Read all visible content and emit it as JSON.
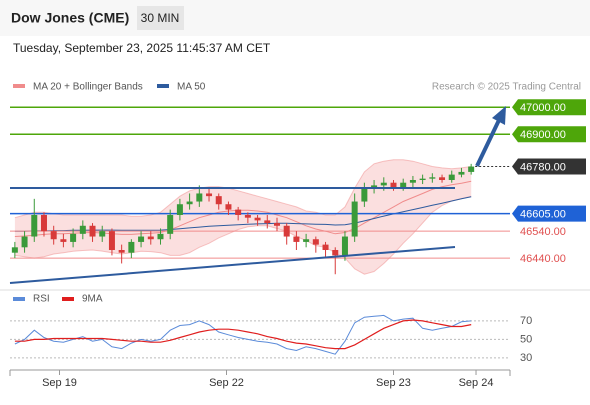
{
  "chart_data": {
    "type": "candlestick",
    "title": "Dow Jones (CME)",
    "timeframe": "30 MIN",
    "subtitle": "Tuesday, September 23, 2025 11:45:37 AM CET",
    "source": "Research © 2025 Trading Central",
    "xlim": [
      -0.5,
      51
    ],
    "xticks": [
      {
        "value": 4.6,
        "label": "Sep 19"
      },
      {
        "value": 21.8,
        "label": "Sep 22"
      },
      {
        "value": 39,
        "label": "Sep 23"
      },
      {
        "value": 47.5,
        "label": "Sep 24"
      }
    ],
    "ylim": [
      46340,
      47120
    ],
    "open": [
      46460,
      46480,
      46520,
      46600,
      46540,
      46510,
      46500,
      46530,
      46560,
      46520,
      46540,
      46470,
      46460,
      46500,
      46520,
      46510,
      46530,
      46600,
      46640,
      46650,
      46680,
      46670,
      46640,
      46620,
      46600,
      46590,
      46580,
      46570,
      46560,
      46520,
      46500,
      46510,
      46490,
      46470,
      46450,
      46520,
      46650,
      46700,
      46710,
      46720,
      46700,
      46720,
      46730,
      46735,
      46740,
      46730,
      46750,
      46760
    ],
    "high": [
      46500,
      46540,
      46660,
      46610,
      46560,
      46530,
      46550,
      46580,
      46570,
      46560,
      46550,
      46490,
      46510,
      46540,
      46540,
      46550,
      46620,
      46660,
      46680,
      46710,
      46700,
      46680,
      46650,
      46630,
      46610,
      46600,
      46600,
      46590,
      46570,
      46540,
      46530,
      46520,
      46500,
      46480,
      46540,
      46680,
      46720,
      46730,
      46740,
      46730,
      46735,
      46745,
      46750,
      46755,
      46750,
      46765,
      46775,
      46790
    ],
    "low": [
      46440,
      46460,
      46500,
      46520,
      46490,
      46480,
      46480,
      46510,
      46500,
      46500,
      46450,
      46420,
      46440,
      46480,
      46490,
      46490,
      46510,
      46580,
      46620,
      46630,
      46650,
      46620,
      46600,
      46580,
      46570,
      46560,
      46550,
      46540,
      46490,
      46470,
      46480,
      46460,
      46440,
      46380,
      46430,
      46500,
      46630,
      46680,
      46690,
      46690,
      46690,
      46700,
      46715,
      46720,
      46720,
      46720,
      46740,
      46750
    ],
    "close": [
      46480,
      46520,
      46600,
      46540,
      46510,
      46500,
      46530,
      46560,
      46520,
      46540,
      46470,
      46460,
      46500,
      46520,
      46510,
      46530,
      46600,
      46640,
      46650,
      46680,
      46670,
      46640,
      46620,
      46600,
      46590,
      46580,
      46570,
      46560,
      46520,
      46500,
      46510,
      46490,
      46470,
      46450,
      46520,
      46650,
      46700,
      46710,
      46720,
      46700,
      46720,
      46730,
      46735,
      46740,
      46730,
      46750,
      46760,
      46780
    ],
    "up_color": "#3a9a3a",
    "down_color": "#d83a3a",
    "series": [
      {
        "name": "MA 20 + Bollinger Bands",
        "color": "#f08c8c",
        "values": [
          46520,
          46522,
          46525,
          46528,
          46530,
          46530,
          46532,
          46534,
          46535,
          46533,
          46530,
          46528,
          46528,
          46530,
          46532,
          46535,
          46545,
          46560,
          46575,
          46590,
          46600,
          46610,
          46615,
          46618,
          46618,
          46615,
          46610,
          46600,
          46590,
          46575,
          46560,
          46548,
          46540,
          46530,
          46535,
          46550,
          46570,
          46590,
          46610,
          46630,
          46650,
          46665,
          46680,
          46695,
          46705,
          46712,
          46718,
          46725
        ],
        "upper": [
          46590,
          46600,
          46610,
          46610,
          46605,
          46600,
          46600,
          46600,
          46600,
          46600,
          46600,
          46600,
          46595,
          46595,
          46600,
          46610,
          46640,
          46670,
          46690,
          46700,
          46705,
          46705,
          46700,
          46690,
          46680,
          46670,
          46660,
          46650,
          46640,
          46630,
          46615,
          46610,
          46600,
          46600,
          46630,
          46700,
          46760,
          46790,
          46800,
          46805,
          46805,
          46800,
          46790,
          46780,
          46775,
          46772,
          46775,
          46780
        ],
        "lower": [
          46450,
          46445,
          46440,
          46445,
          46455,
          46460,
          46465,
          46468,
          46470,
          46466,
          46460,
          46455,
          46460,
          46465,
          46464,
          46460,
          46450,
          46450,
          46460,
          46480,
          46495,
          46515,
          46530,
          46546,
          46556,
          46560,
          46560,
          46550,
          46540,
          46520,
          46505,
          46486,
          46480,
          46460,
          46440,
          46400,
          46380,
          46390,
          46420,
          46455,
          46495,
          46530,
          46570,
          46610,
          46635,
          46652,
          46661,
          46670
        ]
      },
      {
        "name": "MA 50",
        "color": "#2e5b9e",
        "values": [
          46540,
          46540,
          46541,
          46541,
          46542,
          46542,
          46543,
          46543,
          46544,
          46544,
          46544,
          46543,
          46543,
          46543,
          46543,
          46544,
          46546,
          46549,
          46552,
          46555,
          46558,
          46560,
          46562,
          46564,
          46566,
          46567,
          46568,
          46569,
          46569,
          46568,
          46567,
          46566,
          46565,
          46563,
          46564,
          46570,
          46578,
          46587,
          46596,
          46604,
          46612,
          46620,
          46628,
          46636,
          46644,
          46652,
          46660,
          46668
        ]
      }
    ],
    "levels": [
      {
        "price": {
          "value": 47000,
          "label": "47000.00"
        },
        "color": "#4ea60a",
        "boxed": true,
        "style": "solid"
      },
      {
        "price": {
          "value": 46900,
          "label": "46900.00"
        },
        "color": "#4ea60a",
        "boxed": true,
        "style": "solid"
      },
      {
        "price": {
          "value": 46780,
          "label": "46780.00"
        },
        "color": "#333333",
        "boxed": true,
        "style": "dotted"
      },
      {
        "price": {
          "value": 46605,
          "label": "46605.00"
        },
        "color": "#1f62d6",
        "boxed": true,
        "style": "solid"
      },
      {
        "price": {
          "value": 46540,
          "label": "46540.00"
        },
        "color": "#f08c8c",
        "boxed": false,
        "style": "solid"
      },
      {
        "price": {
          "value": 46440,
          "label": "46440.00"
        },
        "color": "#f08c8c",
        "boxed": false,
        "style": "solid"
      }
    ],
    "rsi": {
      "ylim": [
        19,
        84
      ],
      "yticks": [
        70,
        50,
        30
      ],
      "series": [
        {
          "name": "RSI",
          "color": "#5b8bd9",
          "values": [
            45,
            50,
            60,
            52,
            48,
            47,
            50,
            53,
            48,
            50,
            42,
            40,
            46,
            50,
            48,
            50,
            60,
            65,
            66,
            70,
            66,
            58,
            55,
            52,
            50,
            48,
            47,
            45,
            40,
            38,
            42,
            40,
            37,
            34,
            48,
            68,
            74,
            75,
            76,
            70,
            72,
            73,
            62,
            60,
            62,
            64,
            69,
            70
          ]
        },
        {
          "name": "9MA",
          "color": "#e01e1e",
          "values": [
            48,
            48,
            50,
            50,
            51,
            51,
            51,
            51,
            51,
            51,
            50,
            49,
            48,
            48,
            47,
            47,
            49,
            52,
            55,
            58,
            60,
            61,
            61,
            60,
            58,
            56,
            53,
            51,
            48,
            46,
            45,
            43,
            41,
            40,
            40,
            44,
            50,
            56,
            62,
            66,
            70,
            71,
            70,
            68,
            66,
            64,
            64,
            66
          ]
        }
      ]
    }
  }
}
